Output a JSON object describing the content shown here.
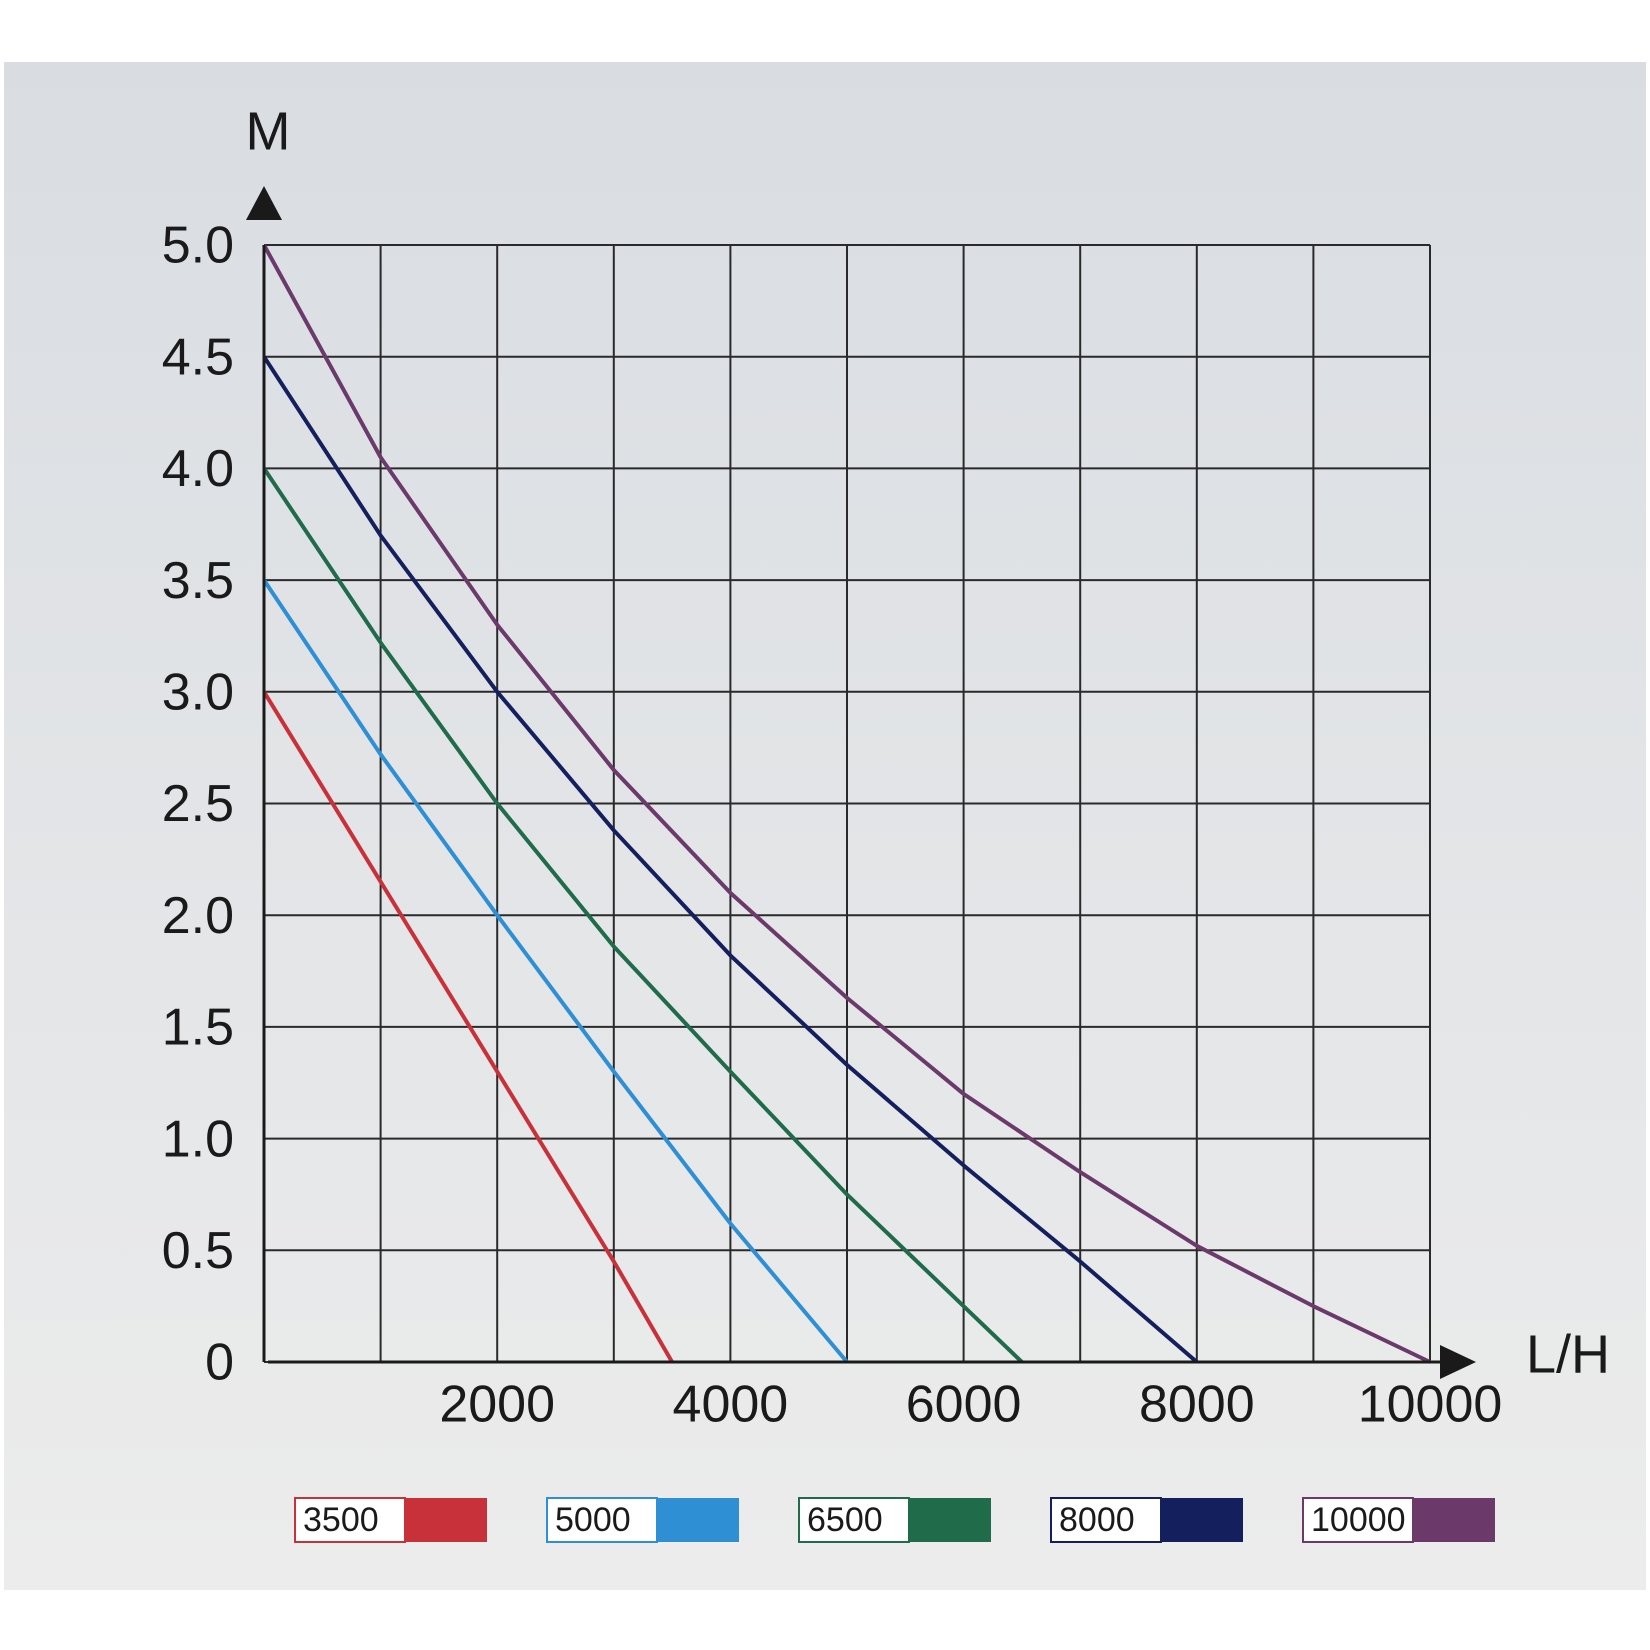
{
  "chart_data": {
    "type": "line",
    "y_label": "M",
    "x_label": "L/H",
    "xlim": [
      0,
      10000
    ],
    "ylim": [
      0,
      5
    ],
    "xticks": [
      2000,
      4000,
      6000,
      8000,
      10000
    ],
    "xgrid": [
      0,
      1000,
      2000,
      3000,
      4000,
      5000,
      6000,
      7000,
      8000,
      9000,
      10000
    ],
    "yticks": [
      0,
      0.5,
      {
        "value": 1,
        "label": "1.0"
      },
      1.5,
      {
        "value": 2,
        "label": "2.0"
      },
      2.5,
      {
        "value": 3,
        "label": "3.0"
      },
      3.5,
      {
        "value": 4,
        "label": "4.0"
      },
      4.5,
      {
        "value": 5,
        "label": "5.0"
      }
    ],
    "grid": true,
    "legend": "bottom",
    "series": [
      {
        "name": "3500",
        "color": "#c8313a",
        "x": [
          0,
          1000,
          2000,
          3000,
          3500
        ],
        "values": [
          3.0,
          2.15,
          1.3,
          0.45,
          0
        ]
      },
      {
        "name": "5000",
        "color": "#2e8fd4",
        "x": [
          0,
          1000,
          2000,
          3000,
          4000,
          5000
        ],
        "values": [
          3.5,
          2.72,
          2.0,
          1.3,
          0.62,
          0
        ]
      },
      {
        "name": "6500",
        "color": "#1f6b4a",
        "x": [
          0,
          1000,
          2000,
          3000,
          4000,
          5000,
          6000,
          6500
        ],
        "values": [
          4.0,
          3.22,
          2.5,
          1.86,
          1.3,
          0.75,
          0.25,
          0
        ]
      },
      {
        "name": "8000",
        "color": "#14205e",
        "x": [
          0,
          1000,
          2000,
          3000,
          4000,
          5000,
          6000,
          7000,
          8000
        ],
        "values": [
          4.5,
          3.7,
          3.0,
          2.38,
          1.82,
          1.33,
          0.88,
          0.45,
          0
        ]
      },
      {
        "name": "10000",
        "color": "#6b3a6b",
        "x": [
          0,
          1000,
          2000,
          3000,
          4000,
          5000,
          6000,
          7000,
          8000,
          9000,
          10000
        ],
        "values": [
          5.0,
          4.05,
          3.3,
          2.65,
          2.1,
          1.63,
          1.2,
          0.85,
          0.52,
          0.25,
          0
        ]
      }
    ]
  }
}
